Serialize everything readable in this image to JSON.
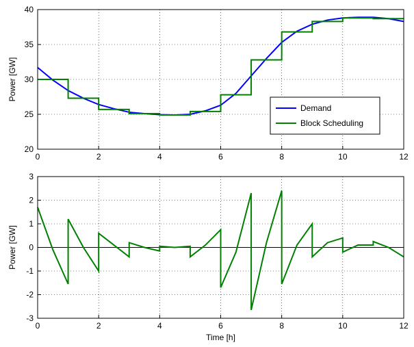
{
  "chart_data": [
    {
      "type": "line",
      "ylabel": "Power [GW]",
      "xlim": [
        0,
        12
      ],
      "ylim": [
        20,
        40
      ],
      "xticks": [
        0,
        2,
        4,
        6,
        8,
        10,
        12
      ],
      "yticks": [
        20,
        25,
        30,
        35,
        40
      ],
      "grid": true,
      "legend": "lower right",
      "series": [
        {
          "name": "Demand",
          "color": "#0000ff",
          "x": [
            0,
            0.5,
            1,
            1.5,
            2,
            2.5,
            3,
            3.5,
            4,
            4.5,
            5,
            5.5,
            6,
            6.5,
            7,
            7.5,
            8,
            8.5,
            9,
            9.5,
            10,
            10.5,
            11,
            11.5,
            12
          ],
          "values": [
            31.7,
            29.9,
            28.4,
            27.3,
            26.4,
            25.8,
            25.3,
            25.1,
            24.95,
            24.9,
            25.0,
            25.5,
            26.3,
            28.0,
            30.5,
            33.0,
            35.3,
            36.9,
            37.9,
            38.5,
            38.8,
            38.9,
            38.9,
            38.7,
            38.3
          ]
        },
        {
          "name": "Block Scheduling",
          "color": "#008000",
          "x": [
            0,
            1,
            1,
            2,
            2,
            3,
            3,
            4,
            4,
            5,
            5,
            6,
            6,
            7,
            7,
            8,
            8,
            9,
            9,
            10,
            10,
            11,
            11,
            12
          ],
          "values": [
            30.0,
            30.0,
            27.3,
            27.3,
            25.7,
            25.7,
            25.1,
            25.1,
            24.9,
            24.9,
            25.4,
            25.4,
            27.8,
            27.8,
            32.8,
            32.8,
            36.8,
            36.8,
            38.3,
            38.3,
            38.8,
            38.8,
            38.7,
            38.7
          ]
        }
      ]
    },
    {
      "type": "line",
      "ylabel": "Power [GW]",
      "xlabel": "Time [h]",
      "xlim": [
        0,
        12
      ],
      "ylim": [
        -3,
        3
      ],
      "xticks": [
        0,
        2,
        4,
        6,
        8,
        10,
        12
      ],
      "yticks": [
        -3,
        -2,
        -1,
        0,
        1,
        2,
        3
      ],
      "grid": true,
      "hline": 0,
      "series": [
        {
          "color": "#008000",
          "x": [
            0,
            0.5,
            1,
            1,
            1.5,
            2,
            2,
            2.5,
            3,
            3,
            3.5,
            4,
            4,
            4.5,
            5,
            5,
            5.5,
            6,
            6,
            6.5,
            7,
            7,
            7.5,
            8,
            8,
            8.5,
            9,
            9,
            9.5,
            10,
            10,
            10.5,
            11,
            11,
            11.5,
            12
          ],
          "values": [
            1.7,
            -0.1,
            -1.55,
            1.2,
            0.0,
            -1.0,
            0.6,
            0.1,
            -0.4,
            0.2,
            0.0,
            -0.15,
            0.05,
            0.0,
            0.05,
            -0.4,
            0.1,
            0.75,
            -1.7,
            -0.2,
            2.3,
            -2.65,
            0.2,
            2.4,
            -1.55,
            0.1,
            1.0,
            -0.4,
            0.2,
            0.4,
            -0.2,
            0.1,
            0.1,
            0.25,
            0.0,
            -0.4
          ]
        }
      ]
    }
  ]
}
